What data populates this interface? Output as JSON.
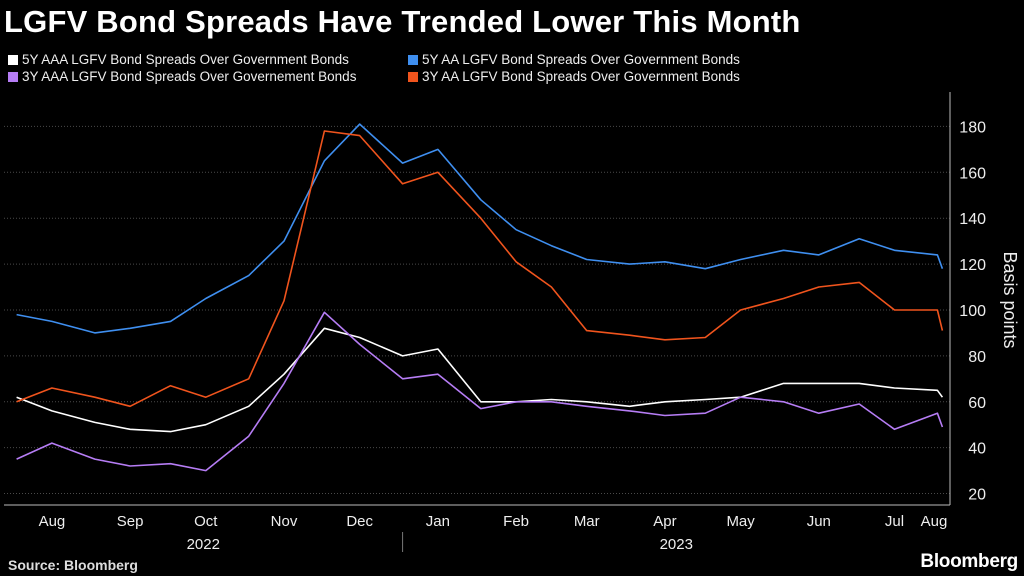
{
  "header": {
    "title": "LGFV Bond Spreads Have Trended Lower This Month"
  },
  "footer": {
    "source": "Source: Bloomberg",
    "brand": "Bloomberg"
  },
  "chart_data": {
    "type": "line",
    "title": "LGFV Bond Spreads Have Trended Lower This Month",
    "ylabel": "Basis points",
    "ylim": [
      15,
      195
    ],
    "yticks": [
      20,
      40,
      60,
      80,
      100,
      120,
      140,
      160,
      180
    ],
    "grid": "horizontal",
    "legend_position": "top-left",
    "x_month_labels": [
      "Aug",
      "Sep",
      "Oct",
      "Nov",
      "Dec",
      "Jan",
      "Feb",
      "Mar",
      "Apr",
      "May",
      "Jun",
      "Jul",
      "Aug"
    ],
    "x_year_labels": [
      "2022",
      "2023"
    ],
    "x": [
      "2022-08-01",
      "2022-08-15",
      "2022-09-01",
      "2022-09-15",
      "2022-10-01",
      "2022-10-15",
      "2022-11-01",
      "2022-11-15",
      "2022-12-01",
      "2022-12-15",
      "2023-01-01",
      "2023-01-15",
      "2023-02-01",
      "2023-02-15",
      "2023-03-01",
      "2023-03-15",
      "2023-04-01",
      "2023-04-15",
      "2023-05-01",
      "2023-05-15",
      "2023-06-01",
      "2023-06-15",
      "2023-07-01",
      "2023-07-15",
      "2023-08-01",
      "2023-08-03"
    ],
    "series": [
      {
        "name": "5Y AAA LGFV Bond Spreads Over Government Bonds",
        "color": "#ffffff",
        "values": [
          62,
          56,
          51,
          48,
          47,
          50,
          58,
          72,
          92,
          88,
          80,
          83,
          60,
          60,
          61,
          60,
          58,
          60,
          61,
          62,
          68,
          68,
          68,
          66,
          65,
          62
        ]
      },
      {
        "name": "5Y AA LGFV Bond Spreads Over Government Bonds",
        "color": "#3f8ff0",
        "values": [
          98,
          95,
          90,
          92,
          95,
          105,
          115,
          130,
          165,
          181,
          164,
          170,
          148,
          135,
          128,
          122,
          120,
          121,
          118,
          122,
          126,
          124,
          131,
          126,
          124,
          118
        ]
      },
      {
        "name": "3Y AAA LGFV Bond Spreads Over Governement Bonds",
        "color": "#b67df5",
        "values": [
          35,
          42,
          35,
          32,
          33,
          30,
          45,
          68,
          99,
          85,
          70,
          72,
          57,
          60,
          60,
          58,
          56,
          54,
          55,
          62,
          60,
          55,
          59,
          48,
          55,
          49
        ]
      },
      {
        "name": "3Y AA LGFV Bond Spreads Over Government Bonds",
        "color": "#f0541d",
        "values": [
          60,
          66,
          62,
          58,
          67,
          62,
          70,
          104,
          178,
          176,
          155,
          160,
          140,
          121,
          110,
          91,
          89,
          87,
          88,
          100,
          105,
          110,
          112,
          100,
          100,
          91
        ]
      }
    ]
  }
}
